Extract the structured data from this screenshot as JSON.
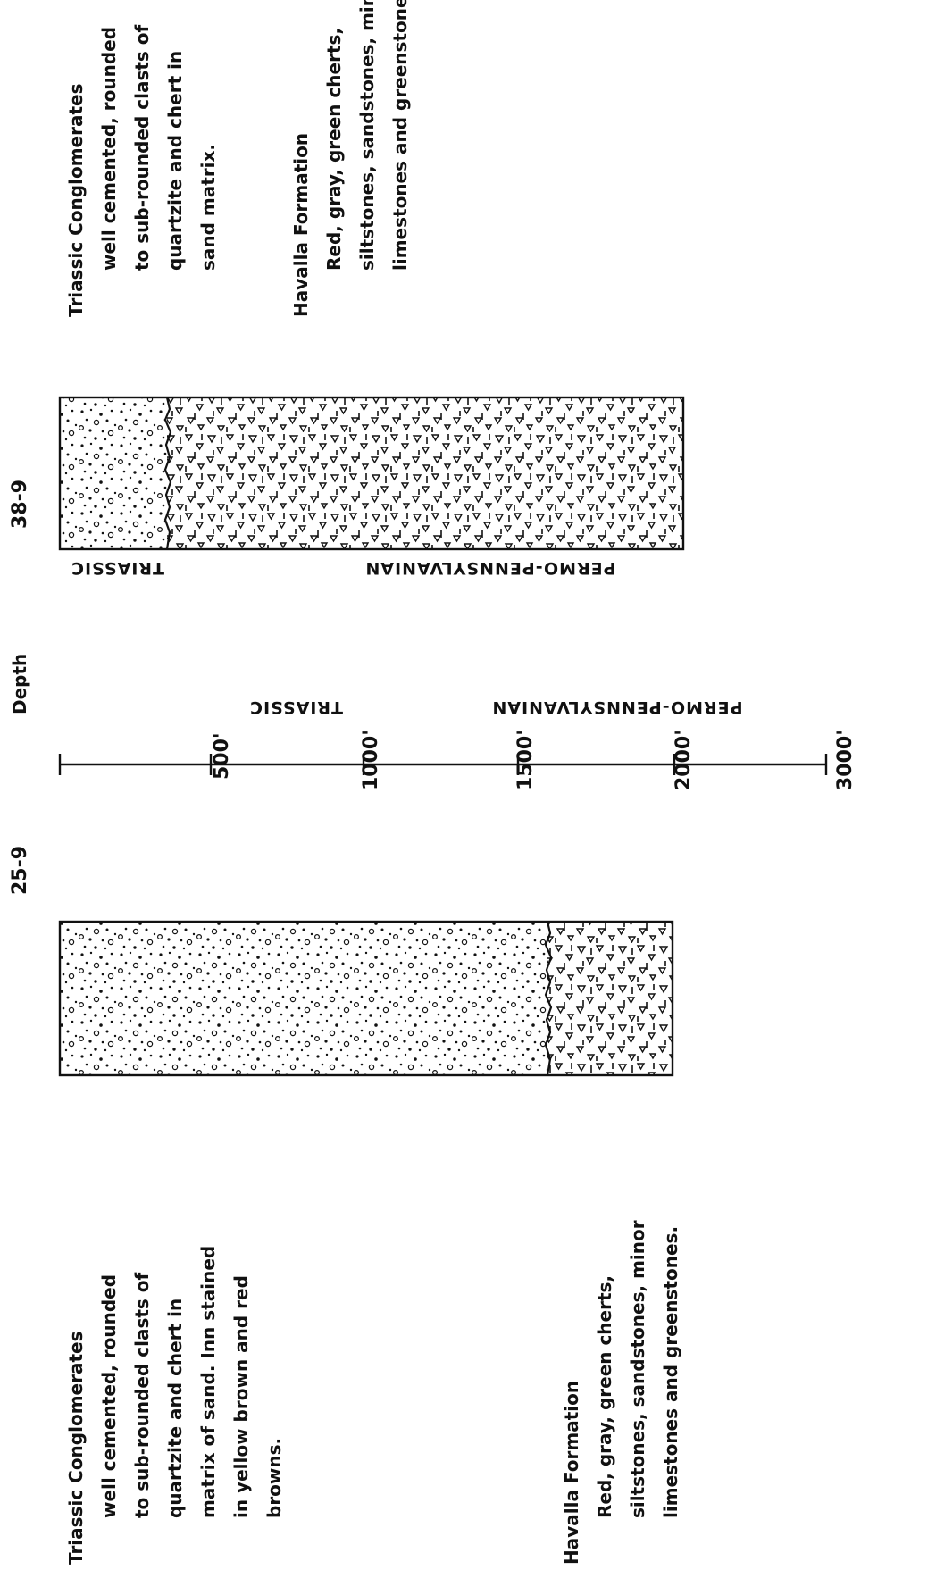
{
  "well_38_9": {
    "label": "38-9",
    "upper_period": "TRIASSIC",
    "lower_period": "PERMO-PENNSYLVANIAN",
    "triassic_desc": {
      "heading": "Triassic Conglomerates",
      "lines": [
        "well cemented, rounded",
        "to sub-rounded clasts of",
        "quartzite and chert in",
        "sand matrix."
      ]
    },
    "havalla_desc": {
      "heading": "Havalla Formation",
      "lines": [
        "Red, gray, green cherts,",
        "siltstones, sandstones, minor",
        "limestones and greenstones."
      ]
    }
  },
  "depth_scale": {
    "title": "Depth",
    "ticks": [
      "500'",
      "1000'",
      "1500'",
      "2000'",
      "3000'"
    ]
  },
  "well_25_9": {
    "label": "25-9",
    "upper_period": "TRIASSIC",
    "lower_period": "PERMO-PENNSYLVANIAN",
    "triassic_desc": {
      "heading": "Triassic Conglomerates",
      "lines": [
        "well cemented, rounded",
        "to sub-rounded clasts of",
        "quartzite and chert in",
        "matrix of sand. Inn stained",
        "in yellow brown and red",
        "browns."
      ]
    },
    "havalla_desc": {
      "heading": "Havalla Formation",
      "lines": [
        "Red, gray, green cherts,",
        "siltstones, sandstones, minor",
        "limestones and greenstones."
      ]
    }
  }
}
